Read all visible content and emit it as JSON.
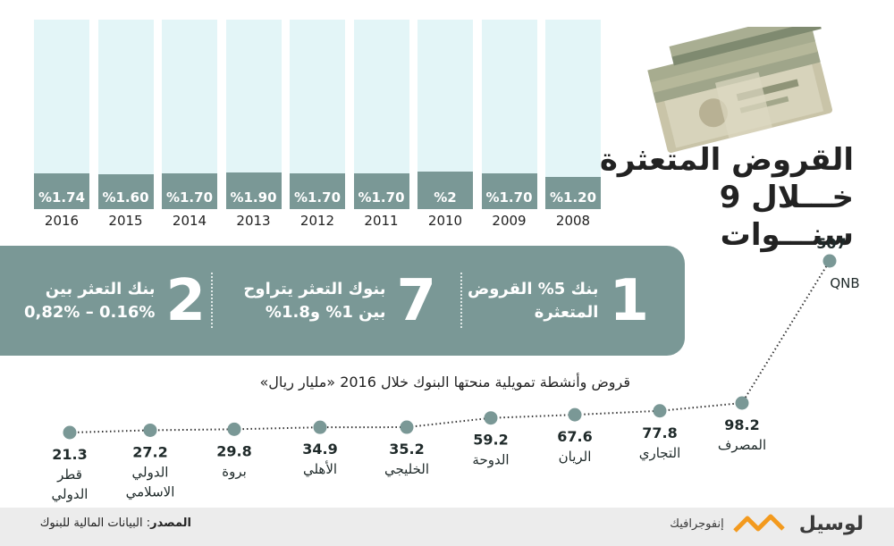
{
  "title": {
    "line1": "القروض المتعثرة",
    "line2": "خـــلال 9 سنـــوات"
  },
  "chart_data": [
    {
      "type": "bar",
      "categories": [
        "2016",
        "2015",
        "2014",
        "2013",
        "2012",
        "2011",
        "2010",
        "2009",
        "2008"
      ],
      "values": [
        1.74,
        1.6,
        1.7,
        1.9,
        1.7,
        1.7,
        2,
        1.7,
        1.2
      ],
      "value_labels": [
        "%1.74",
        "%1.60",
        "%1.70",
        "%1.90",
        "%1.70",
        "%1.70",
        "%2",
        "%1.70",
        "%1.20"
      ]
    },
    {
      "type": "line",
      "title": "قروض وأنشطة تمويلية منحتها البنوك خلال 2016 «مليار ريال»",
      "categories": [
        "قطر الدولي",
        "الدولي الاسلامي",
        "بروة",
        "الأهلي",
        "الخليجي",
        "الدوحة",
        "الريان",
        "التجاري",
        "المصرف",
        "QNB"
      ],
      "category_lines": [
        [
          "قطر",
          "الدولي"
        ],
        [
          "الدولي",
          "الاسلامي"
        ],
        [
          "بروة"
        ],
        [
          "الأهلي"
        ],
        [
          "الخليجي"
        ],
        [
          "الدوحة"
        ],
        [
          "الريان"
        ],
        [
          "التجاري"
        ],
        [
          "المصرف"
        ],
        [
          "QNB"
        ]
      ],
      "values": [
        21.3,
        27.2,
        29.8,
        34.9,
        35.2,
        59.2,
        67.6,
        77.8,
        98.2,
        507
      ],
      "value_labels": [
        "21.3",
        "27.2",
        "29.8",
        "34.9",
        "35.2",
        "59.2",
        "67.6",
        "77.8",
        "98.2",
        "507"
      ]
    }
  ],
  "facts": [
    {
      "number": "1",
      "line1": "بنك 5% القروض",
      "line2": "المتعثرة"
    },
    {
      "number": "7",
      "line1": "بنوك التعثر يتراوح",
      "line2": "بين 1% و1.8%"
    },
    {
      "number": "2",
      "line1": "بنك التعثر بين",
      "line2": "0.16% – 0,82%"
    }
  ],
  "footer": {
    "source_label": "المصدر",
    "source_text": ": البيانات المالية للبنوك",
    "brand": "لوسيل",
    "brand_sub": "إنفوجرافيك"
  },
  "colors": {
    "bar_fill": "#7a9896",
    "bar_bg": "#e3f5f7",
    "panel": "#7a9896",
    "point": "#7a9896",
    "logo_orange": "#f39a1e"
  }
}
